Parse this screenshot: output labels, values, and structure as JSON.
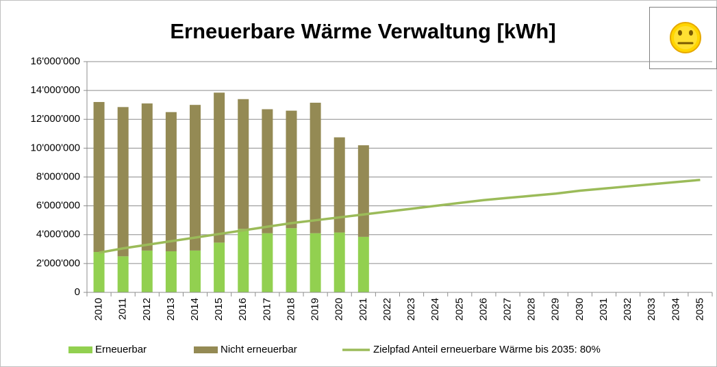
{
  "chart_data": {
    "type": "bar",
    "stacked": true,
    "title": "Erneuerbare Wärme Verwaltung [kWh]",
    "categories": [
      "2010",
      "2011",
      "2012",
      "2013",
      "2014",
      "2015",
      "2016",
      "2017",
      "2018",
      "2019",
      "2020",
      "2021",
      "2022",
      "2023",
      "2024",
      "2025",
      "2026",
      "2027",
      "2028",
      "2029",
      "2030",
      "2031",
      "2032",
      "2033",
      "2034",
      "2035"
    ],
    "series": [
      {
        "name": "Erneuerbar",
        "type": "bar",
        "color": "#92d050",
        "values": [
          2800000,
          2500000,
          2900000,
          2850000,
          2900000,
          3450000,
          4400000,
          4100000,
          4450000,
          4100000,
          4150000,
          3850000,
          null,
          null,
          null,
          null,
          null,
          null,
          null,
          null,
          null,
          null,
          null,
          null,
          null,
          null
        ]
      },
      {
        "name": "Nicht erneuerbar",
        "type": "bar",
        "color": "#948a54",
        "values": [
          10400000,
          10350000,
          10200000,
          9650000,
          10100000,
          10400000,
          9000000,
          8600000,
          8150000,
          9050000,
          6600000,
          6350000,
          null,
          null,
          null,
          null,
          null,
          null,
          null,
          null,
          null,
          null,
          null,
          null,
          null,
          null
        ]
      },
      {
        "name": "Zielpfad Anteil erneuerbare Wärme bis 2035: 80%",
        "type": "line",
        "color": "#9bbb59",
        "values": [
          2750000,
          3050000,
          3300000,
          3550000,
          3800000,
          4050000,
          4300000,
          4550000,
          4800000,
          5000000,
          5200000,
          5400000,
          5600000,
          5800000,
          6000000,
          6200000,
          6400000,
          6550000,
          6700000,
          6850000,
          7050000,
          7200000,
          7350000,
          7500000,
          7650000,
          7800000
        ]
      }
    ],
    "ylim": [
      0,
      16000000
    ],
    "yticks": [
      0,
      {
        "value": 2000000,
        "label": "2'000'000"
      },
      {
        "value": 4000000,
        "label": "4'000'000"
      },
      {
        "value": 6000000,
        "label": "6'000'000"
      },
      {
        "value": 8000000,
        "label": "8'000'000"
      },
      {
        "value": 10000000,
        "label": "10'000'000"
      },
      {
        "value": 12000000,
        "label": "12'000'000"
      },
      {
        "value": 14000000,
        "label": "14'000'000"
      },
      {
        "value": 16000000,
        "label": "16'000'000"
      }
    ],
    "grid": true,
    "legend": "bottom"
  }
}
